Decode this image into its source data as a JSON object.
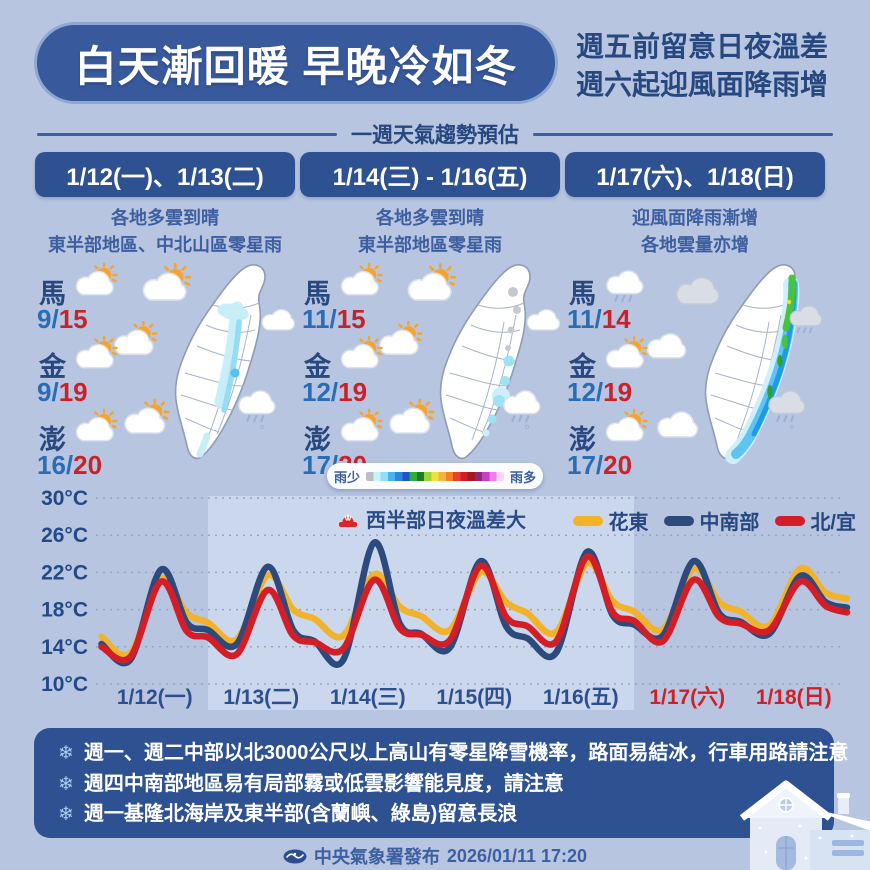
{
  "header": {
    "title": "白天漸回暖  早晚冷如冬",
    "subtitle_line1": "週五前留意日夜溫差",
    "subtitle_line2": "週六起迎風面降雨增"
  },
  "section": {
    "title": "一週天氣趨勢預估"
  },
  "colors": {
    "background": "#b7c5e1",
    "panel_blue": "#2e5191",
    "navy_text": "#27477f",
    "temp_low_blue": "#2a6db6",
    "temp_high_red": "#c8232b",
    "weekend_red": "#cc2129"
  },
  "columns": [
    {
      "date": "1/12(一)、1/13(二)",
      "desc_line1": "各地多雲到晴",
      "desc_line2": "東半部地區、中北山區零星雨",
      "map_rain": "central-east-light",
      "decor": {
        "top": "sun-cloud-icon",
        "right_up": "cloud-icon",
        "left_mid": "sun-cloud-icon",
        "left_low": "sun-cloud-icon",
        "right_low": "rain-cloud-icon"
      },
      "islands": [
        {
          "name": "馬",
          "icon": "sun-cloud-icon",
          "low": "9",
          "high": "15"
        },
        {
          "name": "金",
          "icon": "sun-cloud-icon",
          "low": "9",
          "high": "19"
        },
        {
          "name": "澎",
          "icon": "sun-cloud-icon",
          "low": "16",
          "high": "20"
        }
      ]
    },
    {
      "date": "1/14(三) - 1/16(五)",
      "desc_line1": "各地多雲到晴",
      "desc_line2": "東半部地區零星雨",
      "map_rain": "east-spots",
      "decor": {
        "top": "sun-cloud-icon",
        "right_up": "cloud-icon",
        "left_mid": "sun-cloud-icon",
        "left_low": "sun-cloud-icon",
        "right_low": "rain-cloud-icon"
      },
      "islands": [
        {
          "name": "馬",
          "icon": "sun-cloud-icon",
          "low": "11",
          "high": "15"
        },
        {
          "name": "金",
          "icon": "sun-cloud-icon",
          "low": "12",
          "high": "19"
        },
        {
          "name": "澎",
          "icon": "sun-cloud-icon",
          "low": "17",
          "high": "20"
        }
      ]
    },
    {
      "date": "1/17(六)、1/18(日)",
      "desc_line1": "迎風面降雨漸增",
      "desc_line2": "各地雲量亦增",
      "map_rain": "east-band-heavy",
      "decor": {
        "top": "gray-cloud-icon",
        "right_up": "gray-rain-cloud-icon",
        "left_mid": "cloud-icon",
        "left_low": "cloud-icon",
        "right_low": "gray-rain-cloud-icon"
      },
      "islands": [
        {
          "name": "馬",
          "icon": "rain-cloud-icon",
          "low": "11",
          "high": "14"
        },
        {
          "name": "金",
          "icon": "sun-cloud-icon",
          "low": "12",
          "high": "19"
        },
        {
          "name": "澎",
          "icon": "sun-cloud-icon",
          "low": "17",
          "high": "20"
        }
      ]
    }
  ],
  "rain_scale": {
    "less": "雨少",
    "more": "雨多",
    "colors": [
      "#b9bdc4",
      "#c9f2fa",
      "#8fdff5",
      "#45b5ee",
      "#2c86dd",
      "#2353c9",
      "#2fae3a",
      "#1d7c28",
      "#9ad43a",
      "#f2e13c",
      "#f2b53c",
      "#ee8325",
      "#e8432a",
      "#cf2027",
      "#a51a20",
      "#8c2a78",
      "#c43fc4",
      "#ef7ee8",
      "#fbd6f4"
    ]
  },
  "chart_data": {
    "type": "line",
    "badge": "西半部日夜溫差大",
    "ylabel_ticks": [
      "30°C",
      "26°C",
      "22°C",
      "18°C",
      "14°C",
      "10°C"
    ],
    "ylim": [
      10,
      30
    ],
    "grid": "dashed-horizontal",
    "legend_position": "top-right",
    "x_categories": [
      "1/12(一)",
      "1/13(二)",
      "1/14(三)",
      "1/15(四)",
      "1/16(五)",
      "1/17(六)",
      "1/18(日)"
    ],
    "weekend_indices": [
      5,
      6
    ],
    "highlight_day_range": [
      1,
      5
    ],
    "series": [
      {
        "name": "花東",
        "color": "#f2b32b",
        "points": [
          [
            0,
            15.1
          ],
          [
            0.27,
            13.3
          ],
          [
            0.56,
            21.3
          ],
          [
            0.8,
            17.6
          ],
          [
            1,
            16.6
          ],
          [
            1.27,
            14.8
          ],
          [
            1.56,
            21.7
          ],
          [
            1.8,
            18.0
          ],
          [
            2,
            17.0
          ],
          [
            2.27,
            15.2
          ],
          [
            2.56,
            21.8
          ],
          [
            2.8,
            18.3
          ],
          [
            3,
            17.3
          ],
          [
            3.27,
            15.8
          ],
          [
            3.56,
            22.0
          ],
          [
            3.8,
            18.8
          ],
          [
            4,
            17.6
          ],
          [
            4.27,
            15.6
          ],
          [
            4.56,
            23.0
          ],
          [
            4.8,
            18.9
          ],
          [
            5,
            17.8
          ],
          [
            5.27,
            15.9
          ],
          [
            5.56,
            22.4
          ],
          [
            5.8,
            18.8
          ],
          [
            6,
            17.8
          ],
          [
            6.27,
            16.3
          ],
          [
            6.56,
            22.4
          ],
          [
            6.8,
            19.8
          ],
          [
            7,
            19.2
          ]
        ]
      },
      {
        "name": "中南部",
        "color": "#2c4a7c",
        "points": [
          [
            0,
            14.3
          ],
          [
            0.27,
            12.6
          ],
          [
            0.56,
            22.3
          ],
          [
            0.8,
            16.6
          ],
          [
            1,
            15.8
          ],
          [
            1.27,
            14.3
          ],
          [
            1.56,
            22.6
          ],
          [
            1.8,
            15.8
          ],
          [
            2,
            14.6
          ],
          [
            2.27,
            12.6
          ],
          [
            2.56,
            25.2
          ],
          [
            2.8,
            16.5
          ],
          [
            3,
            15.4
          ],
          [
            3.27,
            13.9
          ],
          [
            3.56,
            23.2
          ],
          [
            3.8,
            16.2
          ],
          [
            4,
            14.9
          ],
          [
            4.27,
            13.4
          ],
          [
            4.56,
            24.2
          ],
          [
            4.8,
            17.4
          ],
          [
            5,
            16.4
          ],
          [
            5.27,
            15.2
          ],
          [
            5.56,
            23.2
          ],
          [
            5.8,
            17.6
          ],
          [
            6,
            16.7
          ],
          [
            6.27,
            15.4
          ],
          [
            6.56,
            21.6
          ],
          [
            6.8,
            18.8
          ],
          [
            7,
            18.2
          ]
        ]
      },
      {
        "name": "北/宜",
        "color": "#d31e28",
        "points": [
          [
            0,
            14.0
          ],
          [
            0.27,
            12.9
          ],
          [
            0.56,
            21.0
          ],
          [
            0.8,
            15.7
          ],
          [
            1,
            15.0
          ],
          [
            1.27,
            13.2
          ],
          [
            1.56,
            20.1
          ],
          [
            1.8,
            15.2
          ],
          [
            2,
            14.5
          ],
          [
            2.27,
            13.8
          ],
          [
            2.56,
            21.2
          ],
          [
            2.8,
            16.0
          ],
          [
            3,
            15.3
          ],
          [
            3.27,
            14.7
          ],
          [
            3.56,
            22.7
          ],
          [
            3.8,
            17.2
          ],
          [
            4,
            16.2
          ],
          [
            4.27,
            14.6
          ],
          [
            4.56,
            23.7
          ],
          [
            4.8,
            17.7
          ],
          [
            5,
            16.8
          ],
          [
            5.27,
            14.6
          ],
          [
            5.56,
            21.2
          ],
          [
            5.8,
            17.2
          ],
          [
            6,
            16.5
          ],
          [
            6.27,
            15.8
          ],
          [
            6.56,
            21.0
          ],
          [
            6.8,
            18.4
          ],
          [
            7,
            17.7
          ]
        ]
      }
    ]
  },
  "notes": {
    "bullet": "❄",
    "items": [
      "週一、週二中部以北3000公尺以上高山有零星降雪機率，路面易結冰，行車用路請注意",
      "週四中南部地區易有局部霧或低雲影響能見度，請注意",
      "週一基隆北海岸及東半部(含蘭嶼、綠島)留意長浪"
    ]
  },
  "footer": {
    "agency": "中央氣象署發布",
    "datetime": "2026/01/11 17:20"
  }
}
